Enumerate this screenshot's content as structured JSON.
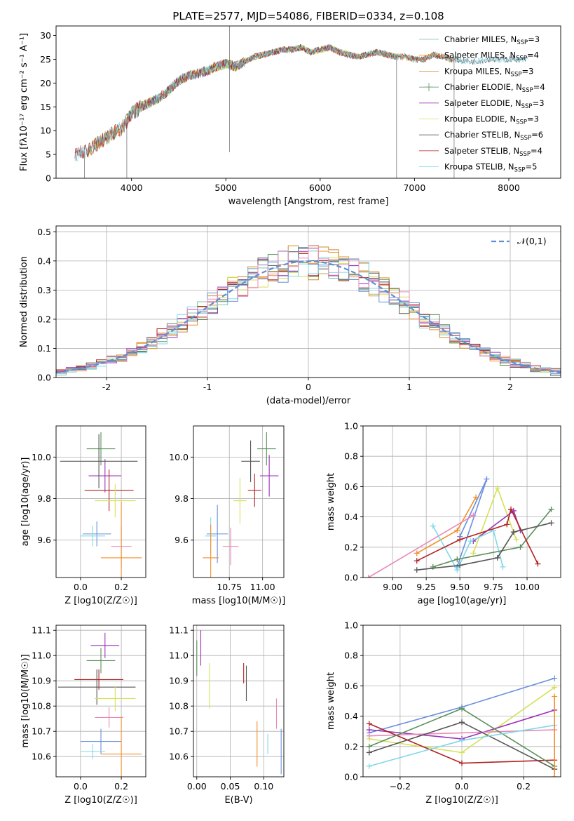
{
  "title": "PLATE=2577, MJD=54086, FIBERID=0334, z=0.108",
  "colors": {
    "Chabrier MILES": "#7fc3a8",
    "Salpeter MILES": "#f28e2b",
    "Kroupa MILES": "#d0892b",
    "Chabrier ELODIE": "#5a8f5a",
    "Salpeter ELODIE": "#9b30b8",
    "Kroupa ELODIE": "#d4e157",
    "Chabrier STELIB": "#555555",
    "Salpeter STELIB": "#b22222",
    "Kroupa STELIB": "#80d8e8",
    "blue": "#6a8fdc",
    "pink": "#e88ab8",
    "gauss": "#5b8fd6"
  },
  "chart_data": [
    {
      "type": "line",
      "id": "spectrum",
      "title": "PLATE=2577, MJD=54086, FIBERID=0334, z=0.108",
      "xlabel": "wavelength [Angstrom, rest frame]",
      "ylabel": "Flux [fλ10⁻¹⁷ erg cm⁻² s⁻¹ A⁻¹]",
      "xlim": [
        3200,
        8550
      ],
      "ylim": [
        0,
        32
      ],
      "xticks": [
        4000,
        5000,
        6000,
        7000,
        8000
      ],
      "yticks": [
        0,
        5,
        10,
        15,
        20,
        25,
        30
      ],
      "legend_position": "top-right",
      "legend": [
        "Chabrier MILES, N_SSP=3",
        "Salpeter MILES, N_SSP=4",
        "Kroupa MILES, N_SSP=3",
        "Chabrier ELODIE, N_SSP=4",
        "Salpeter ELODIE, N_SSP=3",
        "Kroupa ELODIE, N_SSP=3",
        "Chabrier STELIB, N_SSP=6",
        "Salpeter STELIB, N_SSP=4",
        "Kroupa STELIB, N_SSP=5"
      ],
      "continuum": [
        [
          3400,
          5
        ],
        [
          3550,
          6
        ],
        [
          3700,
          8
        ],
        [
          3800,
          9.5
        ],
        [
          3900,
          10.5
        ],
        [
          4000,
          13.5
        ],
        [
          4100,
          15
        ],
        [
          4200,
          16
        ],
        [
          4300,
          17
        ],
        [
          4400,
          18.5
        ],
        [
          4500,
          20.5
        ],
        [
          4600,
          21.5
        ],
        [
          4700,
          22
        ],
        [
          4800,
          22.5
        ],
        [
          4900,
          23.5
        ],
        [
          5000,
          24
        ],
        [
          5100,
          23.5
        ],
        [
          5200,
          24.5
        ],
        [
          5300,
          25.5
        ],
        [
          5400,
          26
        ],
        [
          5500,
          26.5
        ],
        [
          5600,
          27
        ],
        [
          5700,
          27
        ],
        [
          5800,
          27.5
        ],
        [
          5900,
          26.5
        ],
        [
          6000,
          27
        ],
        [
          6100,
          27.5
        ],
        [
          6200,
          26.5
        ],
        [
          6300,
          26
        ],
        [
          6400,
          25.5
        ],
        [
          6500,
          26
        ],
        [
          6600,
          26.5
        ],
        [
          6700,
          26
        ],
        [
          6800,
          25.5
        ],
        [
          6900,
          25.5
        ],
        [
          7000,
          25
        ],
        [
          7100,
          25
        ],
        [
          7200,
          26
        ],
        [
          7300,
          25.5
        ],
        [
          7400,
          25
        ],
        [
          7600,
          24.5
        ],
        [
          7800,
          25
        ],
        [
          8000,
          25
        ],
        [
          8200,
          25
        ]
      ],
      "spikes": [
        [
          5040,
          32
        ],
        [
          5040,
          5.5
        ],
        [
          7420,
          0
        ],
        [
          6810,
          0
        ],
        [
          3950,
          0
        ],
        [
          3500,
          0
        ]
      ]
    },
    {
      "type": "line",
      "id": "residuals",
      "xlabel": "(data-model)/error",
      "ylabel": "Normed distribution",
      "xlim": [
        -2.5,
        2.5
      ],
      "ylim": [
        0,
        0.52
      ],
      "xticks": [
        -2,
        -1,
        0,
        1,
        2
      ],
      "yticks": [
        0.0,
        0.1,
        0.2,
        0.3,
        0.4,
        0.5
      ],
      "legend": [
        "𝒩(0,1)"
      ],
      "legend_position": "top-right",
      "series_name": "𝒩(0,1)"
    },
    {
      "type": "scatter",
      "id": "age_vs_Z",
      "xlabel": "Z [log10(Z/Z☉)]",
      "ylabel": "age [log10(age/yr)]",
      "xlim": [
        -0.12,
        0.32
      ],
      "ylim": [
        9.42,
        10.15
      ],
      "xticks": [
        0.0,
        0.2
      ],
      "yticks": [
        9.6,
        9.8,
        10.0
      ],
      "points": [
        {
          "x": 0.1,
          "y": 10.04,
          "xerr": 0.07,
          "yerr": 0.08,
          "color": "Chabrier ELODIE"
        },
        {
          "x": 0.09,
          "y": 9.98,
          "xerr": 0.19,
          "yerr": 0.13,
          "color": "Chabrier STELIB"
        },
        {
          "x": 0.12,
          "y": 9.91,
          "xerr": 0.08,
          "yerr": 0.08,
          "color": "Salpeter ELODIE"
        },
        {
          "x": 0.14,
          "y": 9.84,
          "xerr": 0.12,
          "yerr": 0.1,
          "color": "Salpeter STELIB"
        },
        {
          "x": 0.17,
          "y": 9.79,
          "xerr": 0.1,
          "yerr": 0.08,
          "color": "Kroupa ELODIE"
        },
        {
          "x": 0.08,
          "y": 9.63,
          "xerr": 0.07,
          "yerr": 0.06,
          "color": "blue"
        },
        {
          "x": 0.06,
          "y": 9.62,
          "xerr": 0.06,
          "yerr": 0.05,
          "color": "Kroupa STELIB"
        },
        {
          "x": 0.2,
          "y": 9.57,
          "xerr": 0.05,
          "yerr": 0.1,
          "color": "pink"
        },
        {
          "x": 0.2,
          "y": 9.515,
          "xerr": 0.1,
          "yerr": 0.27,
          "color": "Salpeter MILES"
        }
      ]
    },
    {
      "type": "scatter",
      "id": "age_vs_mass",
      "xlabel": "mass [log10(M/M☉)]",
      "xlim": [
        10.48,
        11.16
      ],
      "ylim": [
        9.42,
        10.15
      ],
      "xticks": [
        10.75,
        11.0
      ],
      "yticks": [
        9.6,
        9.8,
        10.0
      ],
      "points": [
        {
          "x": 11.03,
          "y": 10.04,
          "xerr": 0.07,
          "yerr": 0.08,
          "color": "Chabrier ELODIE"
        },
        {
          "x": 10.91,
          "y": 9.98,
          "xerr": 0.07,
          "yerr": 0.1,
          "color": "Chabrier STELIB"
        },
        {
          "x": 11.05,
          "y": 9.91,
          "xerr": 0.07,
          "yerr": 0.1,
          "color": "Salpeter ELODIE"
        },
        {
          "x": 10.94,
          "y": 9.84,
          "xerr": 0.05,
          "yerr": 0.08,
          "color": "Salpeter STELIB"
        },
        {
          "x": 10.83,
          "y": 9.79,
          "xerr": 0.05,
          "yerr": 0.11,
          "color": "Kroupa ELODIE"
        },
        {
          "x": 10.66,
          "y": 9.63,
          "xerr": 0.08,
          "yerr": 0.14,
          "color": "blue"
        },
        {
          "x": 10.61,
          "y": 9.62,
          "xerr": 0.04,
          "yerr": 0.09,
          "color": "Kroupa STELIB"
        },
        {
          "x": 10.76,
          "y": 9.57,
          "xerr": 0.06,
          "yerr": 0.09,
          "color": "pink"
        },
        {
          "x": 10.61,
          "y": 9.515,
          "xerr": 0.06,
          "yerr": 0.16,
          "color": "Salpeter MILES"
        }
      ]
    },
    {
      "type": "line",
      "id": "mass_weight_vs_age",
      "xlabel": "age [log10(age/yr)]",
      "ylabel": "mass weight",
      "xlim": [
        8.78,
        10.25
      ],
      "ylim": [
        0,
        1.0
      ],
      "xticks": [
        9.0,
        9.25,
        9.5,
        9.75,
        10.0
      ],
      "yticks": [
        0.0,
        0.2,
        0.4,
        0.6,
        0.8,
        1.0
      ],
      "series": [
        {
          "color": "blue",
          "x": [
            9.5,
            9.7,
            9.48
          ],
          "y": [
            0.27,
            0.65,
            0.07
          ]
        },
        {
          "color": "Salpeter MILES",
          "x": [
            9.18,
            9.48,
            9.62
          ],
          "y": [
            0.16,
            0.31,
            0.53
          ]
        },
        {
          "color": "pink",
          "x": [
            8.82,
            9.6
          ],
          "y": [
            0.0,
            0.41
          ]
        },
        {
          "color": "Kroupa ELODIE",
          "x": [
            9.6,
            9.78,
            9.92
          ],
          "y": [
            0.16,
            0.59,
            0.25
          ]
        },
        {
          "color": "Salpeter ELODIE",
          "x": [
            9.6,
            9.9,
            9.95
          ],
          "y": [
            0.24,
            0.44,
            0.31
          ]
        },
        {
          "color": "Kroupa STELIB",
          "x": [
            9.3,
            9.48,
            9.58,
            9.75,
            9.82
          ],
          "y": [
            0.34,
            0.05,
            0.24,
            0.31,
            0.07
          ]
        },
        {
          "color": "Chabrier ELODIE",
          "x": [
            9.3,
            9.48,
            9.95,
            10.18
          ],
          "y": [
            0.07,
            0.12,
            0.2,
            0.45
          ]
        },
        {
          "color": "Salpeter STELIB",
          "x": [
            9.18,
            9.5,
            9.85,
            9.88,
            10.08
          ],
          "y": [
            0.11,
            0.25,
            0.35,
            0.45,
            0.09
          ]
        },
        {
          "color": "Chabrier STELIB",
          "x": [
            9.18,
            9.5,
            9.78,
            9.9,
            10.18
          ],
          "y": [
            0.05,
            0.08,
            0.13,
            0.3,
            0.36
          ]
        }
      ]
    },
    {
      "type": "scatter",
      "id": "mass_vs_Z",
      "xlabel": "Z [log10(Z/Z☉)]",
      "ylabel": "mass [log10(M/M☉)]",
      "xlim": [
        -0.12,
        0.32
      ],
      "ylim": [
        10.52,
        11.12
      ],
      "xticks": [
        0.0,
        0.2
      ],
      "yticks": [
        10.6,
        10.7,
        10.8,
        10.9,
        11.0,
        11.1
      ],
      "points": [
        {
          "x": 0.12,
          "y": 11.04,
          "xerr": 0.07,
          "yerr": 0.05,
          "color": "Salpeter ELODIE"
        },
        {
          "x": 0.1,
          "y": 10.98,
          "xerr": 0.07,
          "yerr": 0.05,
          "color": "Chabrier ELODIE"
        },
        {
          "x": 0.09,
          "y": 10.905,
          "xerr": 0.12,
          "yerr": 0.04,
          "color": "Salpeter STELIB"
        },
        {
          "x": 0.08,
          "y": 10.875,
          "xerr": 0.19,
          "yerr": 0.07,
          "color": "Chabrier STELIB"
        },
        {
          "x": 0.17,
          "y": 10.83,
          "xerr": 0.1,
          "yerr": 0.05,
          "color": "Kroupa ELODIE"
        },
        {
          "x": 0.14,
          "y": 10.755,
          "xerr": 0.07,
          "yerr": 0.04,
          "color": "pink"
        },
        {
          "x": 0.1,
          "y": 10.66,
          "xerr": 0.1,
          "yerr": 0.05,
          "color": "blue"
        },
        {
          "x": 0.06,
          "y": 10.62,
          "xerr": 0.06,
          "yerr": 0.03,
          "color": "Kroupa STELIB"
        },
        {
          "x": 0.2,
          "y": 10.61,
          "xerr": 0.1,
          "yerr": 0.15,
          "color": "Salpeter MILES"
        }
      ]
    },
    {
      "type": "scatter",
      "id": "mass_vs_ebv",
      "xlabel": "E(B-V)",
      "xlim": [
        -0.005,
        0.13
      ],
      "ylim": [
        10.52,
        11.12
      ],
      "xticks": [
        0.0,
        0.05,
        0.1
      ],
      "yticks": [
        10.6,
        10.7,
        10.8,
        10.9,
        11.0,
        11.1
      ],
      "points": [
        {
          "x": 0.006,
          "y": 11.03,
          "yerr": 0.07,
          "color": "Salpeter ELODIE"
        },
        {
          "x": 0.0,
          "y": 10.99,
          "yerr": 0.07,
          "color": "Chabrier ELODIE"
        },
        {
          "x": 0.019,
          "y": 10.88,
          "yerr": 0.09,
          "color": "Kroupa ELODIE"
        },
        {
          "x": 0.07,
          "y": 10.93,
          "yerr": 0.04,
          "color": "Salpeter STELIB"
        },
        {
          "x": 0.074,
          "y": 10.89,
          "yerr": 0.07,
          "color": "Chabrier STELIB"
        },
        {
          "x": 0.119,
          "y": 10.77,
          "yerr": 0.06,
          "color": "pink"
        },
        {
          "x": 0.106,
          "y": 10.65,
          "yerr": 0.04,
          "color": "Kroupa STELIB"
        },
        {
          "x": 0.09,
          "y": 10.65,
          "yerr": 0.09,
          "color": "Salpeter MILES"
        },
        {
          "x": 0.126,
          "y": 10.62,
          "yerr": 0.09,
          "color": "blue"
        }
      ]
    },
    {
      "type": "line",
      "id": "mass_weight_vs_Z",
      "xlabel": "Z [log10(Z/Z☉)]",
      "ylabel": "mass weight",
      "xlim": [
        -0.32,
        0.32
      ],
      "ylim": [
        0,
        1.0
      ],
      "xticks": [
        -0.2,
        0.0,
        0.2
      ],
      "yticks": [
        0.0,
        0.2,
        0.4,
        0.6,
        0.8,
        1.0
      ],
      "series": [
        {
          "color": "blue",
          "x": [
            -0.3,
            0.0,
            0.3
          ],
          "y": [
            0.29,
            0.46,
            0.65
          ]
        },
        {
          "color": "Kroupa ELODIE",
          "x": [
            -0.3,
            0.0,
            0.3
          ],
          "y": [
            0.25,
            0.16,
            0.59
          ]
        },
        {
          "color": "Salpeter ELODIE",
          "x": [
            -0.3,
            0.0,
            0.3
          ],
          "y": [
            0.31,
            0.25,
            0.44
          ]
        },
        {
          "color": "pink",
          "x": [
            -0.3,
            0.3
          ],
          "y": [
            0.27,
            0.31
          ]
        },
        {
          "color": "Salpeter STELIB",
          "x": [
            -0.3,
            0.0,
            0.3
          ],
          "y": [
            0.35,
            0.09,
            0.11
          ]
        },
        {
          "color": "Chabrier STELIB",
          "x": [
            -0.3,
            0.0,
            0.3
          ],
          "y": [
            0.16,
            0.36,
            0.05
          ]
        },
        {
          "color": "Chabrier ELODIE",
          "x": [
            -0.3,
            0.0,
            0.3
          ],
          "y": [
            0.2,
            0.45,
            0.07
          ]
        },
        {
          "color": "Kroupa STELIB",
          "x": [
            -0.3,
            0.0,
            0.3
          ],
          "y": [
            0.07,
            0.24,
            0.34
          ]
        },
        {
          "color": "Salpeter MILES",
          "x": [
            0.3,
            0.3
          ],
          "y": [
            0.0,
            0.53
          ]
        }
      ]
    }
  ]
}
